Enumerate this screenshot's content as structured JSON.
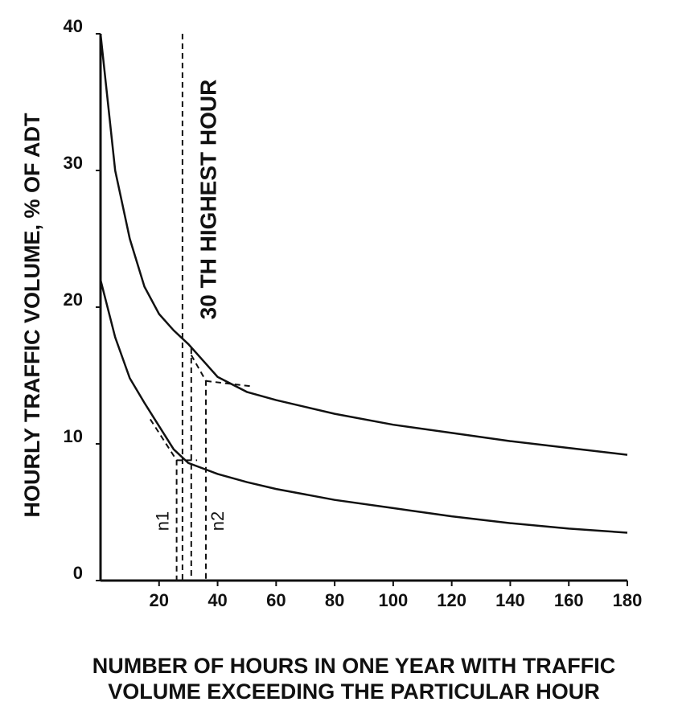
{
  "chart_data": {
    "type": "line",
    "ylabel": "HOURLY TRAFFIC VOLUME, % OF ADT",
    "xlabel": [
      "NUMBER OF HOURS IN ONE YEAR WITH TRAFFIC",
      "VOLUME EXCEEDING THE PARTICULAR HOUR"
    ],
    "x": [
      0,
      5,
      10,
      15,
      20,
      25,
      30,
      40,
      50,
      60,
      80,
      100,
      120,
      140,
      160,
      180
    ],
    "series": [
      {
        "color": "#111111",
        "values": [
          40,
          30,
          25,
          21.5,
          19.5,
          18.3,
          17.3,
          14.9,
          13.8,
          13.2,
          12.2,
          11.4,
          10.8,
          10.2,
          9.7,
          9.2
        ]
      },
      {
        "color": "#111111",
        "values": [
          22,
          17.8,
          14.8,
          13,
          11.3,
          9.6,
          8.6,
          7.8,
          7.2,
          6.7,
          5.9,
          5.3,
          4.7,
          4.2,
          3.8,
          3.5
        ]
      }
    ],
    "reference_lines": [
      {
        "label": "30 TH HIGHEST HOUR",
        "x": [
          28,
          28
        ],
        "y": [
          40,
          0
        ]
      },
      {
        "x": [
          31,
          31
        ],
        "y": [
          17,
          0
        ]
      },
      {
        "label": "n1",
        "x": [
          17,
          26,
          26
        ],
        "y": [
          11.8,
          8.8,
          0
        ]
      },
      {
        "x": [
          26,
          33
        ],
        "y": [
          8.8,
          8.8
        ]
      },
      {
        "label": "n2",
        "x": [
          31,
          36,
          36
        ],
        "y": [
          16.5,
          14.6,
          0
        ]
      },
      {
        "x": [
          36,
          52
        ],
        "y": [
          14.6,
          14.2
        ]
      }
    ],
    "xlim": [
      0,
      180
    ],
    "ylim": [
      0,
      40
    ],
    "xticks": [
      20,
      40,
      60,
      80,
      100,
      120,
      140,
      160,
      180
    ],
    "yticks": [
      0,
      10,
      20,
      30,
      40
    ]
  }
}
